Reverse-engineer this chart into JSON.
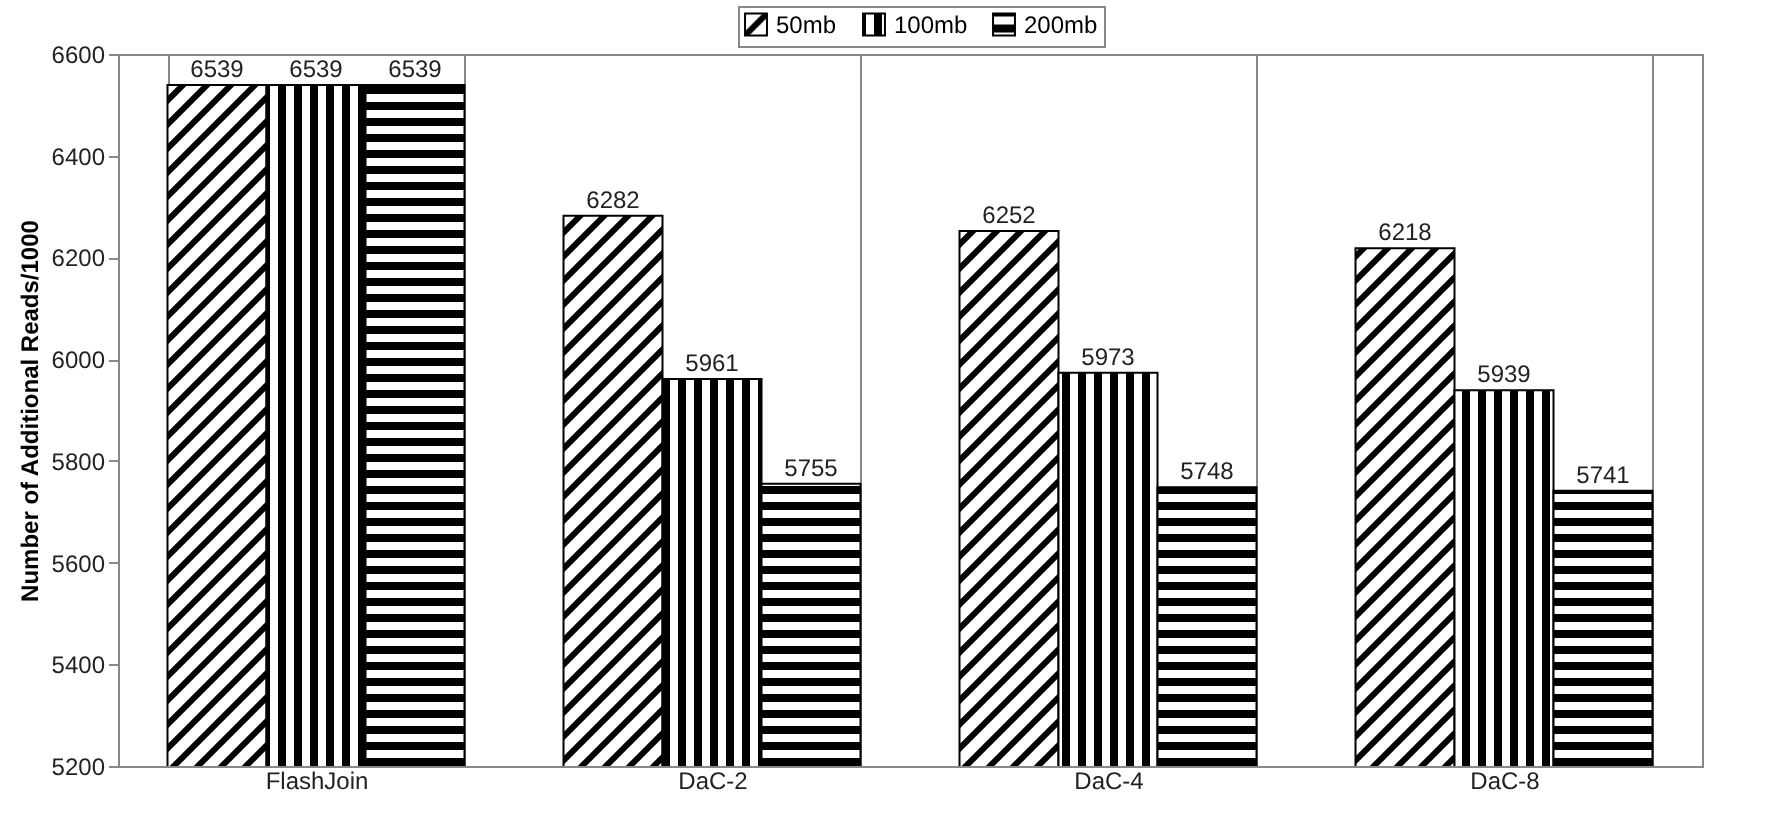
{
  "chart_data": {
    "type": "bar",
    "ylabel": "Number of Additional Reads/1000",
    "categories": [
      "FlashJoin",
      "DaC-2",
      "DaC-4",
      "DaC-8"
    ],
    "series": [
      {
        "name": "50mb",
        "color": "#000000",
        "values": [
          6539,
          6282,
          6252,
          6218
        ]
      },
      {
        "name": "100mb",
        "color": "#000000",
        "values": [
          6539,
          5961,
          5973,
          5939
        ]
      },
      {
        "name": "200mb",
        "color": "#000000",
        "values": [
          6539,
          5755,
          5748,
          5741
        ]
      }
    ],
    "ylim": [
      5200,
      6600
    ],
    "yticks": [
      5200,
      5400,
      5600,
      5800,
      6000,
      6200,
      6400,
      6600
    ],
    "data_labels": true,
    "grid": "x",
    "legend": "top"
  }
}
